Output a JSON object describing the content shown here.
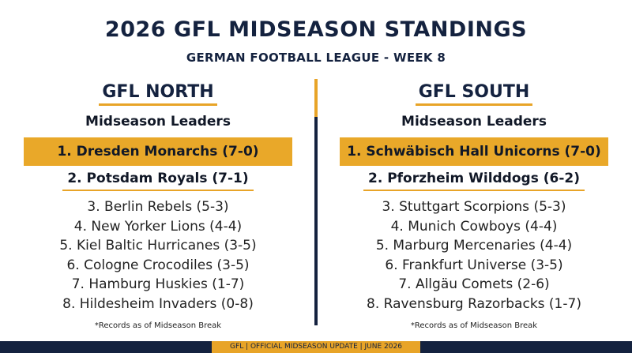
{
  "title": "2026 GFL MIDSEASON STANDINGS",
  "subtitle": "GERMAN FOOTBALL LEAGUE - WEEK 8",
  "north": {
    "conference": "GFL NORTH",
    "leaders_heading": "Midseason Leaders",
    "leader1": "1. Dresden Monarchs (7-0)",
    "leader2": "2. Potsdam Royals (7-1)",
    "teams": [
      "3. Berlin Rebels (5-3)",
      "4. New Yorker Lions (4-4)",
      "5. Kiel Baltic Hurricanes (3-5)",
      "6. Cologne Crocodiles (3-5)",
      "7. Hamburg Huskies (1-7)",
      "8. Hildesheim Invaders (0-8)"
    ],
    "note": "*Records as of Midseason Break"
  },
  "south": {
    "conference": "GFL SOUTH",
    "leaders_heading": "Midseason Leaders",
    "leader1": "1. Schwäbisch Hall Unicorns (7-0)",
    "leader2": "2. Pforzheim Wilddogs (6-2)",
    "teams": [
      "3. Stuttgart Scorpions (5-3)",
      "4. Munich Cowboys (4-4)",
      "5. Marburg Mercenaries (4-4)",
      "6. Frankfurt Universe (3-5)",
      "7. Allgäu Comets (2-6)",
      "8. Ravensburg Razorbacks (1-7)"
    ],
    "note": "*Records as of Midseason Break"
  },
  "footer": "GFL | OFFICIAL MIDSEASON UPDATE | JUNE 2026",
  "colors": {
    "navy": "#14223f",
    "gold": "#e8a428"
  }
}
